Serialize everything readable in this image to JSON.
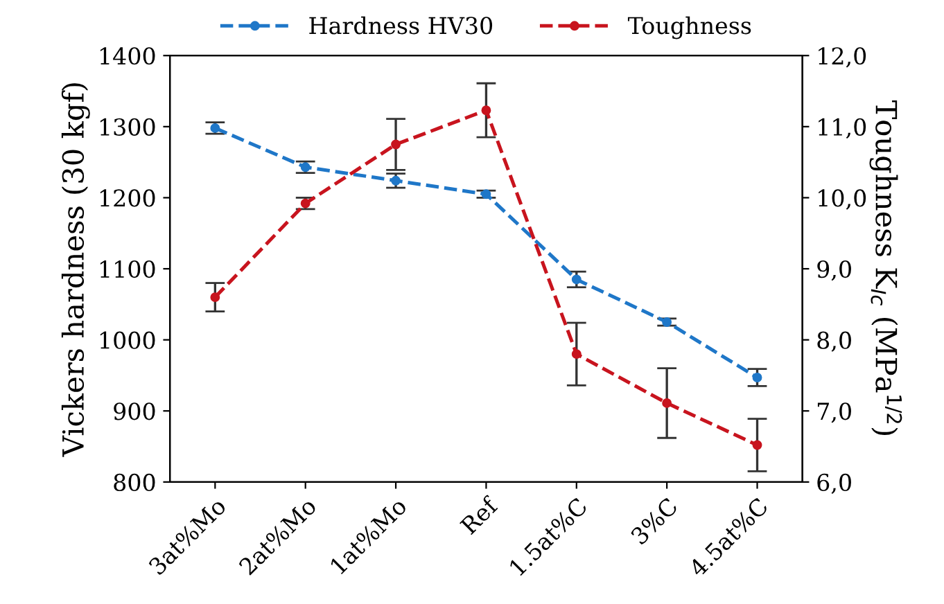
{
  "chart_data": {
    "type": "line",
    "xlabel": null,
    "ylabel": "Vickers hardness (30 kgf)",
    "y2label": "Toughness K$_{Ic}$ (MPa$^{1/2}$)",
    "categories": [
      "3at%Mo",
      "2at%Mo",
      "1at%Mo",
      "Ref",
      "1.5at%C",
      "3%C",
      "4.5at%C"
    ],
    "series": [
      {
        "name": "Hardness HV30",
        "color": "#1f77c8",
        "values": [
          1298,
          1243,
          1224,
          1205,
          1085,
          1025,
          947
        ],
        "errors": [
          8,
          8,
          10,
          5,
          11,
          5,
          12
        ]
      },
      {
        "name": "Toughness",
        "color": "#c8141e",
        "axis": "y2",
        "values": [
          8.6,
          9.92,
          10.75,
          11.23,
          7.8,
          7.11,
          6.52
        ],
        "errors": [
          0.2,
          0.08,
          0.36,
          0.38,
          0.44,
          0.49,
          0.37
        ]
      }
    ],
    "ylim": [
      800,
      1400
    ],
    "yticks": [
      800,
      900,
      1000,
      1100,
      1200,
      1300,
      1400
    ],
    "y2lim": [
      6,
      12
    ],
    "y2ticks": [
      {
        "value": 6,
        "label": "6,0"
      },
      {
        "value": 7,
        "label": "7,0"
      },
      {
        "value": 8,
        "label": "8,0"
      },
      {
        "value": 9,
        "label": "9,0"
      },
      {
        "value": 10,
        "label": "10,0"
      },
      {
        "value": 11,
        "label": "11,0"
      },
      {
        "value": 12,
        "label": "12,0"
      }
    ],
    "legend": "top",
    "marker": "circle",
    "line_style": "dashed",
    "grid": false
  }
}
